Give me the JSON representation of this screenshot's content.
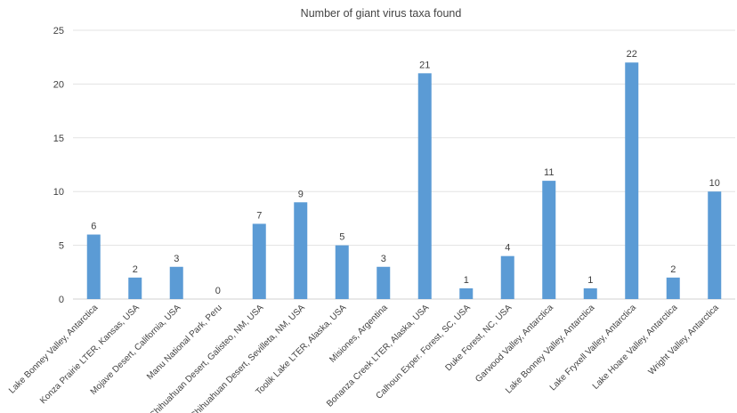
{
  "chart_data": {
    "type": "bar",
    "title": "Number of giant virus taxa found",
    "xlabel": "",
    "ylabel": "",
    "ylim": [
      0,
      25
    ],
    "yticks": [
      0,
      5,
      10,
      15,
      20,
      25
    ],
    "grid": true,
    "legend": "none",
    "bar_color": "#5B9BD5",
    "categories": [
      "Lake Bonney Valley, Antarctica",
      "Konza Prairie LTER, Kansas, USA",
      "Mojave Desert, California, USA",
      "Manu National Park, Peru",
      "Chihuahuan Desert, Galisteo, NM, USA",
      "Chihuahuan Desert, Sevilleta, NM, USA",
      "Toolik Lake LTER, Alaska, USA",
      "Misiones, Argentina",
      "Bonanza Creek LTER, Alaska, USA",
      "Calhoun Exper. Forest, SC, USA",
      "Duke Forest, NC, USA",
      "Garwood Valley, Antarctica",
      "Lake Bonney Valley, Antarctica",
      "Lake Fryxell Valley, Antarctica",
      "Lake Hoare Valley, Antarctica",
      "Wright Valley, Antarctica"
    ],
    "values": [
      6,
      2,
      3,
      0,
      7,
      9,
      5,
      3,
      21,
      1,
      4,
      11,
      1,
      22,
      2,
      10
    ]
  }
}
